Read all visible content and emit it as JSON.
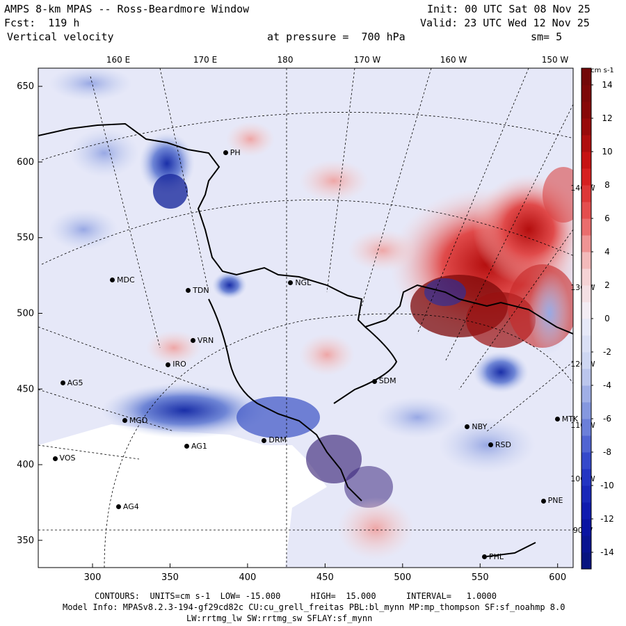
{
  "header": {
    "title": "AMPS 8-km MPAS -- Ross-Beardmore Window",
    "init": "Init: 00 UTC Sat 08 Nov 25",
    "fcst": "Fcst:  119 h",
    "valid": "Valid: 23 UTC Wed 12 Nov 25",
    "field": "Vertical velocity",
    "pressure": "at pressure =  700 hPa",
    "smoothing": "sm= 5"
  },
  "chart_data": {
    "type": "heatmap",
    "title": "Vertical velocity at 700 hPa",
    "units": "cm s-1",
    "x_range": [
      265,
      610
    ],
    "y_range": [
      332,
      662
    ],
    "x_ticks": [
      300,
      350,
      400,
      450,
      500,
      550,
      600
    ],
    "y_ticks": [
      350,
      400,
      450,
      500,
      550,
      600,
      650
    ],
    "longitude_labels": [
      "160 E",
      "170 E",
      "180",
      "170 W",
      "160 W",
      "150 W"
    ],
    "right_lon_labels": [
      "140 W",
      "130 W",
      "120 W",
      "110 W",
      "100 W",
      "90 W"
    ],
    "colorbar": {
      "label": "cm s-1",
      "min": -15,
      "max": 15,
      "ticks": [
        14,
        12,
        10,
        8,
        6,
        4,
        2,
        0,
        -2,
        -4,
        -6,
        -8,
        -10,
        -12,
        -14
      ]
    },
    "contours": {
      "low": -15.0,
      "high": 15.0,
      "interval": 1.0
    },
    "stations": [
      {
        "name": "MDC",
        "x": 313,
        "y": 522
      },
      {
        "name": "NGL",
        "x": 428,
        "y": 520
      },
      {
        "name": "TDN",
        "x": 362,
        "y": 515
      },
      {
        "name": "VRN",
        "x": 365,
        "y": 482
      },
      {
        "name": "IRO",
        "x": 349,
        "y": 466
      },
      {
        "name": "AG5",
        "x": 281,
        "y": 454
      },
      {
        "name": "SDM",
        "x": 482,
        "y": 455
      },
      {
        "name": "MGD",
        "x": 321,
        "y": 429
      },
      {
        "name": "NBY",
        "x": 542,
        "y": 425
      },
      {
        "name": "MTK",
        "x": 600,
        "y": 430
      },
      {
        "name": "DRM",
        "x": 411,
        "y": 416
      },
      {
        "name": "AG1",
        "x": 361,
        "y": 412
      },
      {
        "name": "RSD",
        "x": 557,
        "y": 413
      },
      {
        "name": "VOS",
        "x": 276,
        "y": 404
      },
      {
        "name": "PNE",
        "x": 591,
        "y": 376
      },
      {
        "name": "AG4",
        "x": 317,
        "y": 372
      },
      {
        "name": "PHL",
        "x": 553,
        "y": 339
      },
      {
        "name": "PH",
        "x": 386,
        "y": 606
      }
    ]
  },
  "footer": {
    "contours_line": "CONTOURS:  UNITS=cm s-1  LOW= -15.000      HIGH=  15.000      INTERVAL=   1.0000",
    "model_line": "Model Info: MPASv8.2.3-194-gf29cd82c CU:cu_grell_freitas PBL:bl_mynn MP:mp_thompson SF:sf_noahmp 8.0",
    "physics_line": "LW:rrtmg_lw SW:rrtmg_sw SFLAY:sf_mynn"
  },
  "colors": {
    "neg_dark": "#0a1a8c",
    "neg_light": "#c8d2f0",
    "pos_light": "#f5d2d2",
    "pos_dark": "#6e0808"
  }
}
